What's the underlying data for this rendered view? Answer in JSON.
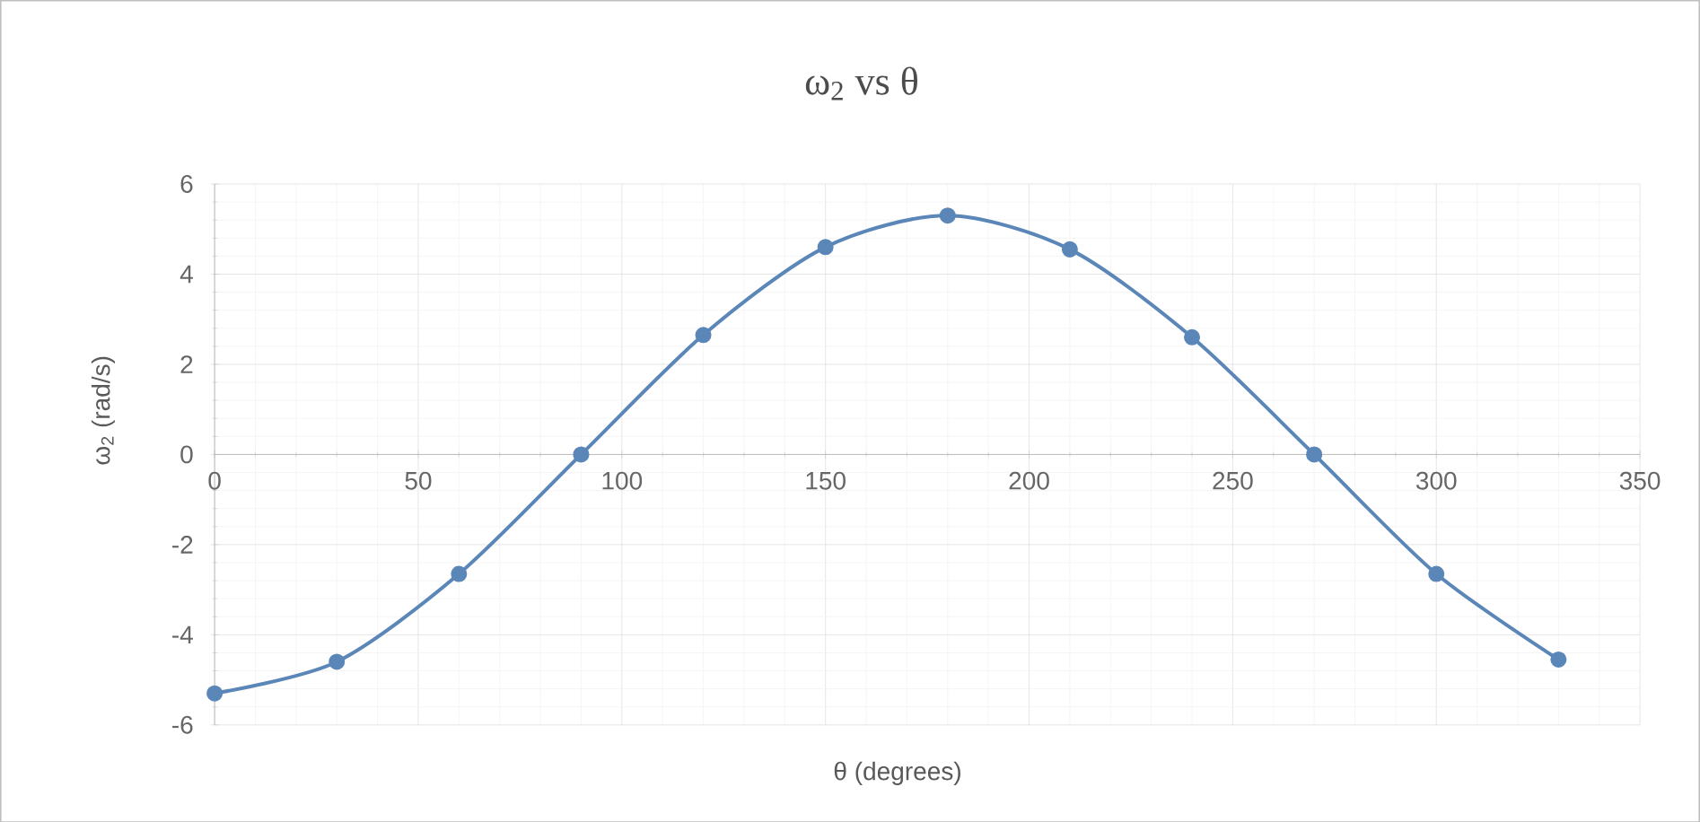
{
  "chart_data": {
    "type": "line",
    "title": "ω$_{2}$ vs θ",
    "xlabel": "θ (degrees)",
    "ylabel": "ω$_{2}$ (rad/s)",
    "x": [
      0,
      30,
      60,
      90,
      120,
      150,
      180,
      210,
      240,
      270,
      300,
      330
    ],
    "series": [
      {
        "color": "#5b86b8",
        "values": [
          -5.3,
          -4.6,
          -2.65,
          0,
          2.65,
          4.6,
          5.3,
          4.55,
          2.6,
          0,
          -2.65,
          -4.55
        ]
      }
    ],
    "xlim": [
      0,
      350
    ],
    "xticks": [
      0,
      50,
      100,
      150,
      200,
      250,
      300,
      350
    ],
    "ylim": [
      -6,
      6
    ],
    "yticks": [
      -6,
      -4,
      -2,
      0,
      2,
      4,
      6
    ],
    "grid": true,
    "marker": "circle",
    "line_style": "solid"
  }
}
